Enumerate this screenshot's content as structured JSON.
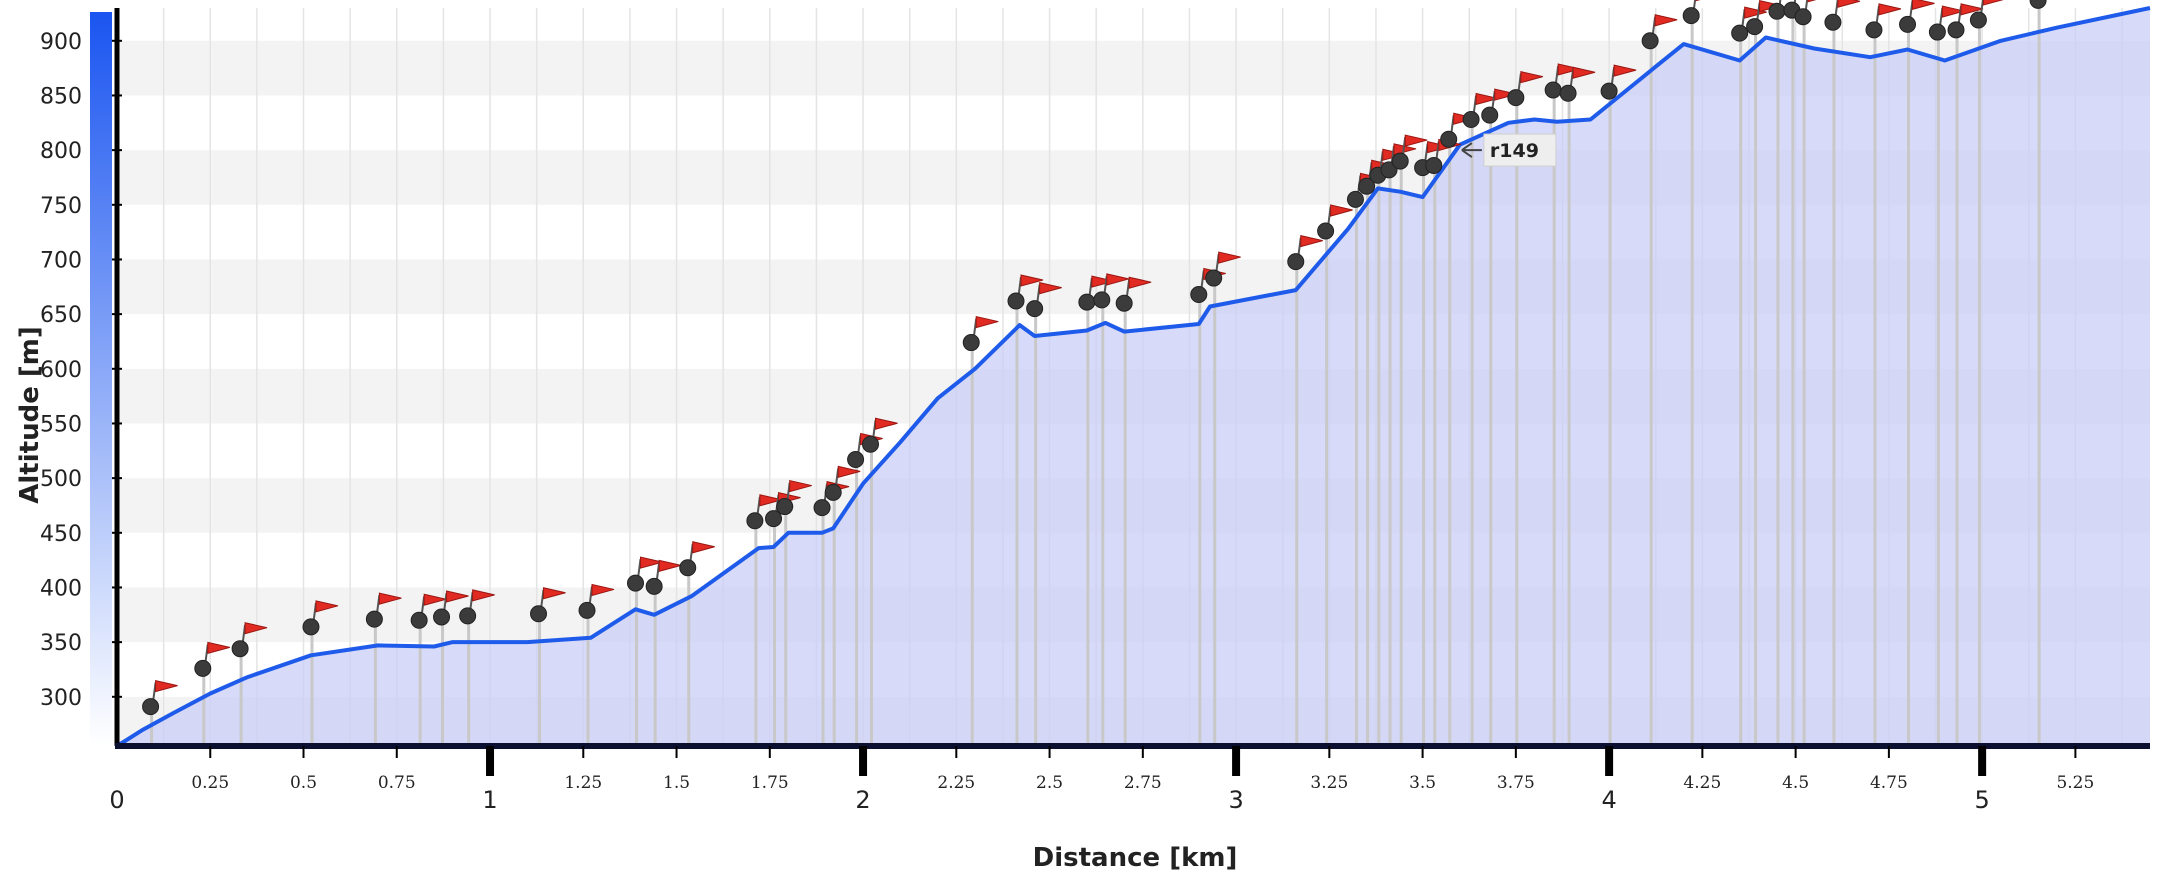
{
  "chart_data": {
    "type": "area",
    "xlabel": "Distance [km]",
    "ylabel": "Altitude [m]",
    "xlim": [
      0,
      5.45
    ],
    "ylim": [
      255,
      930
    ],
    "x_major_ticks": [
      0,
      1,
      2,
      3,
      4,
      5
    ],
    "x_major_tick_labels": [
      "0",
      "1",
      "2",
      "3",
      "4",
      "5"
    ],
    "x_minor_ticks": [
      0.25,
      0.5,
      0.75,
      1.25,
      1.5,
      1.75,
      2.25,
      2.5,
      2.75,
      3.25,
      3.5,
      3.75,
      4.25,
      4.5,
      4.75,
      5.25
    ],
    "x_minor_tick_labels": [
      "0.25",
      "0.5",
      "0.75",
      "1.25",
      "1.5",
      "1.75",
      "2.25",
      "2.5",
      "2.75",
      "3.25",
      "3.5",
      "3.75",
      "4.25",
      "4.5",
      "4.75",
      "5.25"
    ],
    "y_ticks": [
      300,
      350,
      400,
      450,
      500,
      550,
      600,
      650,
      700,
      750,
      800,
      850,
      900
    ],
    "y_tick_labels": [
      "300",
      "350",
      "400",
      "450",
      "500",
      "550",
      "600",
      "650",
      "700",
      "750",
      "800",
      "850",
      "900"
    ],
    "grid": true,
    "series": [
      {
        "x": [
          0,
          0.07,
          0.15,
          0.25,
          0.35,
          0.52,
          0.7,
          0.85,
          0.9,
          1.0,
          1.1,
          1.27,
          1.39,
          1.44,
          1.54,
          1.72,
          1.76,
          1.8,
          1.89,
          1.92,
          2.0,
          2.1,
          2.2,
          2.3,
          2.42,
          2.46,
          2.6,
          2.65,
          2.7,
          2.9,
          2.93,
          3.16,
          3.23,
          3.3,
          3.38,
          3.44,
          3.5,
          3.6,
          3.73,
          3.8,
          3.86,
          3.95,
          4.12,
          4.2,
          4.35,
          4.42,
          4.55,
          4.7,
          4.8,
          4.9,
          5.05,
          5.2,
          5.45
        ],
        "y": [
          255,
          270,
          285,
          303,
          318,
          338,
          347,
          346,
          350,
          350,
          350,
          354,
          380,
          375,
          392,
          436,
          437,
          450,
          450,
          454,
          495,
          533,
          573,
          600,
          640,
          630,
          635,
          642,
          634,
          641,
          657,
          672,
          700,
          728,
          765,
          762,
          757,
          805,
          825,
          828,
          826,
          828,
          875,
          897,
          882,
          903,
          893,
          885,
          892,
          882,
          900,
          912,
          930
        ]
      }
    ],
    "markers": [
      {
        "x": 0.09,
        "y": 291
      },
      {
        "x": 0.23,
        "y": 326
      },
      {
        "x": 0.33,
        "y": 344
      },
      {
        "x": 0.52,
        "y": 364
      },
      {
        "x": 0.69,
        "y": 371
      },
      {
        "x": 0.81,
        "y": 370
      },
      {
        "x": 0.87,
        "y": 373
      },
      {
        "x": 0.94,
        "y": 374
      },
      {
        "x": 1.13,
        "y": 376
      },
      {
        "x": 1.26,
        "y": 379
      },
      {
        "x": 1.39,
        "y": 404
      },
      {
        "x": 1.44,
        "y": 401
      },
      {
        "x": 1.53,
        "y": 418
      },
      {
        "x": 1.71,
        "y": 461
      },
      {
        "x": 1.76,
        "y": 463
      },
      {
        "x": 1.79,
        "y": 474
      },
      {
        "x": 1.89,
        "y": 473
      },
      {
        "x": 1.92,
        "y": 487
      },
      {
        "x": 1.98,
        "y": 517
      },
      {
        "x": 2.02,
        "y": 531
      },
      {
        "x": 2.29,
        "y": 624
      },
      {
        "x": 2.41,
        "y": 662
      },
      {
        "x": 2.46,
        "y": 655
      },
      {
        "x": 2.6,
        "y": 661
      },
      {
        "x": 2.64,
        "y": 663
      },
      {
        "x": 2.7,
        "y": 660
      },
      {
        "x": 2.9,
        "y": 668
      },
      {
        "x": 2.94,
        "y": 683
      },
      {
        "x": 3.16,
        "y": 698
      },
      {
        "x": 3.24,
        "y": 726
      },
      {
        "x": 3.32,
        "y": 755
      },
      {
        "x": 3.35,
        "y": 767
      },
      {
        "x": 3.38,
        "y": 777
      },
      {
        "x": 3.41,
        "y": 782
      },
      {
        "x": 3.44,
        "y": 790
      },
      {
        "x": 3.5,
        "y": 784
      },
      {
        "x": 3.53,
        "y": 786
      },
      {
        "x": 3.57,
        "y": 810
      },
      {
        "x": 3.63,
        "y": 828
      },
      {
        "x": 3.68,
        "y": 832
      },
      {
        "x": 3.75,
        "y": 848
      },
      {
        "x": 3.85,
        "y": 855
      },
      {
        "x": 3.89,
        "y": 852
      },
      {
        "x": 4.0,
        "y": 854
      },
      {
        "x": 4.11,
        "y": 900
      },
      {
        "x": 4.22,
        "y": 923
      },
      {
        "x": 4.35,
        "y": 907
      },
      {
        "x": 4.39,
        "y": 913
      },
      {
        "x": 4.45,
        "y": 927
      },
      {
        "x": 4.49,
        "y": 928
      },
      {
        "x": 4.52,
        "y": 922
      },
      {
        "x": 4.6,
        "y": 917
      },
      {
        "x": 4.71,
        "y": 910
      },
      {
        "x": 4.8,
        "y": 915
      },
      {
        "x": 4.88,
        "y": 908
      },
      {
        "x": 4.93,
        "y": 910
      },
      {
        "x": 4.99,
        "y": 919
      },
      {
        "x": 5.15,
        "y": 937
      }
    ],
    "annotations": [
      {
        "text": "r149",
        "x": 3.6,
        "y": 790
      }
    ]
  }
}
